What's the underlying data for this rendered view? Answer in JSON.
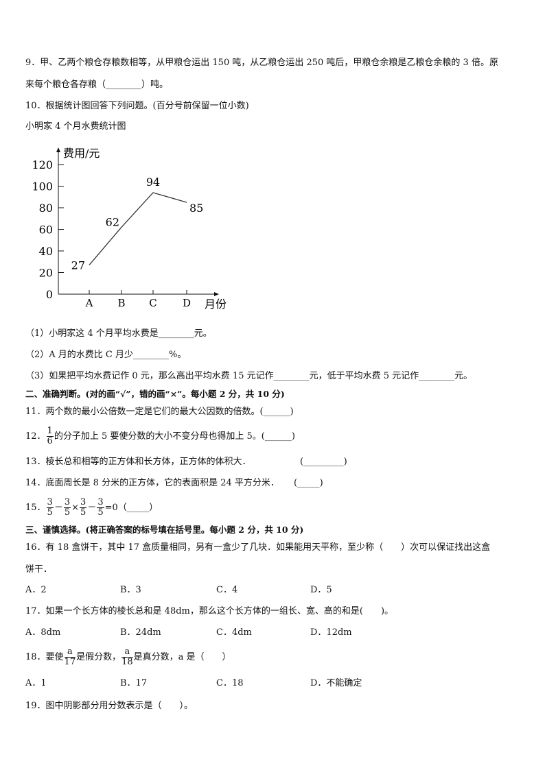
{
  "q9": {
    "line1": "9．甲、乙两个粮仓存粮数相等，从甲粮仓运出 150 吨，从乙粮仓运出 250 吨后，甲粮仓余粮是乙粮仓余粮的 3 倍。原",
    "line2": "来每个粮仓各存粮（________）吨。"
  },
  "q10": {
    "text": "10．根据统计图回答下列问题。(百分号前保留一位小数)",
    "chart_title": "小明家 4 个月水费统计图",
    "sub1": "（1）小明家这 4 个月平均水费是________元。",
    "sub2": "（2）A 月的水费比 C 月少________%。",
    "sub3": "（3）如果把平均水费记作 0 元，那么高出平均水费 15 元记作________元，低于平均水费 5 元记作________元。"
  },
  "chart_data": {
    "type": "line",
    "title": "小明家 4 个月水费统计图",
    "xlabel": "月份",
    "ylabel": "费用/元",
    "categories": [
      "A",
      "B",
      "C",
      "D"
    ],
    "values": [
      27,
      62,
      94,
      85
    ],
    "data_labels": [
      "27",
      "62",
      "94",
      "85"
    ],
    "yticks": [
      "0",
      "20",
      "40",
      "60",
      "80",
      "100",
      "120"
    ],
    "ylim": [
      0,
      120
    ],
    "grid": false
  },
  "section2": "二、准确判断。(对的画“√”，错的画“×”。每小题 2 分，共 10 分)",
  "q11": "11．两个数的最小公倍数一定是它们的最大公因数的倍数。(______)",
  "q12": {
    "prefix": "12．",
    "num": "1",
    "den": "6",
    "text": "的分子加上 5 要使分数的大小不变分母也得加上 5。(______)"
  },
  "q13": "13．棱长总和相等的正方体和长方体，正方体的体积大．",
  "q13_blank": "(_________)",
  "q14": "14．底面周长是 8 分米的正方体，它的表面积是 24 平方分米．",
  "q14_blank": "(_____)",
  "q15": {
    "prefix": "15．",
    "num": "3",
    "den": "5",
    "minus": "－",
    "times": "×",
    "tail": "=0（_____）"
  },
  "section3": "三、谨慎选择。(将正确答案的标号填在括号里。每小题 2 分，共 10 分)",
  "q16": {
    "line1": "16．有 18 盒饼干，其中 17 盒质量相同，另有一盒少了几块．如果能用天平称，至少称（　　）次可以保证找出这盒",
    "line2": "饼干．",
    "options": [
      "A．2",
      "B．3",
      "C．4",
      "D．5"
    ]
  },
  "q17": {
    "text": "17．如果一个长方体的棱长总和是 48dm，那么这个长方体的一组长、宽、高的和是(　　)。",
    "options": [
      "A．8dm",
      "B．24dm",
      "C．4dm",
      "D．12dm"
    ]
  },
  "q18": {
    "prefix": "18．要使",
    "num": "a",
    "den1": "17",
    "mid": "是假分数，",
    "den2": "18",
    "tail": "是真分数，a 是（　　）",
    "options": [
      "A．1",
      "B．17",
      "C．18",
      "D．不能确定"
    ]
  },
  "q19": "19．图中阴影部分用分数表示是（　　）。"
}
